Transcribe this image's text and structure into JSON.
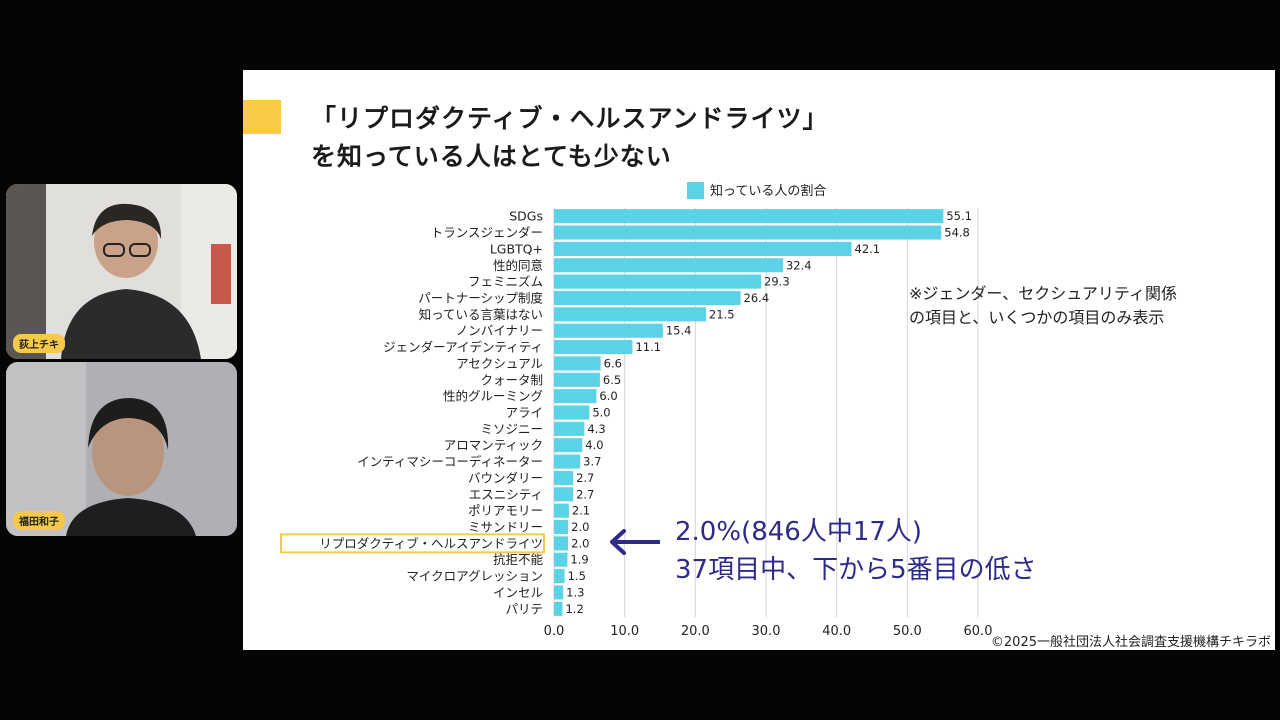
{
  "participants": [
    {
      "name": "荻上チキ"
    },
    {
      "name": "福田和子"
    }
  ],
  "slide": {
    "title_line1": "「リプロダクティブ・ヘルスアンドライツ」",
    "title_line2": "を知っている人はとても少ない",
    "note_line1": "※ジェンダー、セクシュアリティ関係",
    "note_line2": "の項目と、いくつかの項目のみ表示",
    "callout_line1": "2.0%(846人中17人)",
    "callout_line2": "37項目中、下から5番目の低さ",
    "copyright": "©2025一般社団法人社会調査支援機構チキラボ"
  },
  "chart_data": {
    "type": "bar",
    "orientation": "horizontal",
    "legend": "知っている人の割合",
    "legend_position": "top",
    "bar_color": "#5bd2e6",
    "highlight_color": "#f6c94a",
    "highlighted_category": "リプロダクティブ・ヘルスアンドライツ",
    "categories": [
      "SDGs",
      "トランスジェンダー",
      "LGBTQ+",
      "性的同意",
      "フェミニズム",
      "パートナーシップ制度",
      "知っている言葉はない",
      "ノンバイナリー",
      "ジェンダーアイデンティティ",
      "アセクシュアル",
      "クォータ制",
      "性的グルーミング",
      "アライ",
      "ミソジニー",
      "アロマンティック",
      "インティマシーコーディネーター",
      "バウンダリー",
      "エスニシティ",
      "ポリアモリー",
      "ミサンドリー",
      "リプロダクティブ・ヘルスアンドライツ",
      "抗拒不能",
      "マイクロアグレッション",
      "インセル",
      "パリテ"
    ],
    "values": [
      55.1,
      54.8,
      42.1,
      32.4,
      29.3,
      26.4,
      21.5,
      15.4,
      11.1,
      6.6,
      6.5,
      6.0,
      5.0,
      4.3,
      4.0,
      3.7,
      2.7,
      2.7,
      2.1,
      2.0,
      2.0,
      1.9,
      1.5,
      1.3,
      1.2
    ],
    "xlim": [
      0,
      60
    ],
    "xticks": [
      "0.0",
      "10.0",
      "20.0",
      "30.0",
      "40.0",
      "50.0",
      "60.0"
    ],
    "grid": true
  }
}
